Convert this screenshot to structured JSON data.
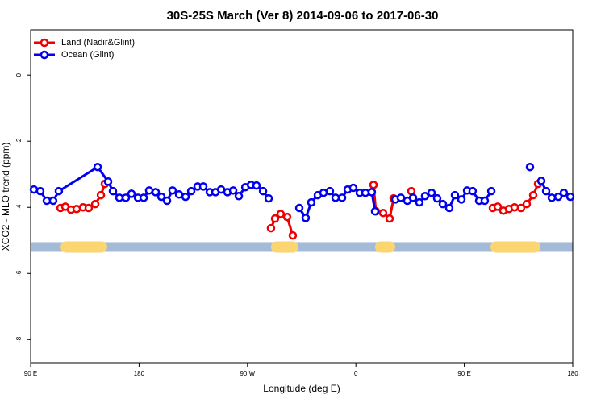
{
  "chart_data": {
    "type": "line",
    "title": "30S-25S March (Ver 8)   2014-09-06 to 2017-06-30",
    "x_label": "Longitude (deg E)",
    "y_label": "XCO2 - MLO trend (ppm)",
    "xlim": [
      90,
      540
    ],
    "ylim": [
      -8.7,
      1.37
    ],
    "xticks": [
      {
        "value": 90,
        "label": "90 E"
      },
      {
        "value": 180,
        "label": "180"
      },
      {
        "value": 270,
        "label": "90 W"
      },
      {
        "value": 360,
        "label": "0"
      },
      {
        "value": 450,
        "label": "90 E"
      },
      {
        "value": 540,
        "label": "180"
      }
    ],
    "yticks": [
      0,
      -2,
      -4,
      -6,
      -8
    ],
    "legend": "top-left",
    "band": {
      "y": -5.2,
      "color": "#a3bbd8",
      "land_color": "#fbd56f",
      "land_spans": [
        [
          114.8,
          153.6
        ],
        [
          289.5,
          312.3
        ],
        [
          375.9,
          392.7
        ],
        [
          471.7,
          513.2
        ]
      ]
    },
    "series": [
      {
        "name": "Land (Nadir&Glint)",
        "color": "#ee0000",
        "x": [
          114.8,
          118.8,
          123.5,
          128.2,
          133.5,
          138.2,
          143.6,
          148.3,
          151.6,
          200,
          289.5,
          292.9,
          297.5,
          302.9,
          307.6,
          340,
          374.6,
          376.6,
          382.6,
          388.0,
          391.3,
          400,
          406.0,
          440,
          473.7,
          477.7,
          482.4,
          487.1,
          491.8,
          497.1,
          501.8,
          507.2,
          511.2
        ],
        "values": [
          -4.02,
          -3.98,
          -4.07,
          -4.05,
          -4.0,
          -4.02,
          -3.9,
          -3.63,
          -3.29,
          null,
          -4.63,
          -4.34,
          -4.2,
          -4.29,
          -4.85,
          null,
          -3.32,
          -4.12,
          -4.17,
          -4.34,
          -3.73,
          null,
          -3.51,
          null,
          -4.02,
          -3.98,
          -4.1,
          -4.05,
          -4.0,
          -4.02,
          -3.9,
          -3.63,
          -3.29
        ]
      },
      {
        "name": "Ocean (Glint)",
        "color": "#0000ee",
        "x": [
          92.7,
          98.0,
          103.4,
          108.7,
          113.4,
          145.6,
          154.3,
          158.3,
          163.7,
          169.0,
          173.7,
          179.1,
          183.8,
          188.4,
          193.8,
          198.5,
          203.2,
          207.8,
          213.2,
          218.6,
          223.3,
          228.6,
          233.3,
          238.7,
          243.4,
          248.1,
          253.4,
          258.1,
          262.8,
          268.2,
          272.9,
          277.5,
          282.9,
          287.6,
          300,
          313.0,
          318.3,
          323.0,
          328.4,
          333.1,
          338.4,
          343.1,
          348.5,
          353.2,
          357.8,
          363.2,
          367.9,
          373.2,
          375.9,
          378,
          392.7,
          397.3,
          402.7,
          407.4,
          412.7,
          417.4,
          422.8,
          427.5,
          432.2,
          437.5,
          442.2,
          447.6,
          452.3,
          456.9,
          462.3,
          467.0,
          472.4,
          480,
          504.5,
          508,
          513.9,
          517.9,
          522.6,
          528.0,
          532.6,
          538.0
        ],
        "values": [
          -3.46,
          -3.51,
          -3.8,
          -3.8,
          -3.51,
          -2.78,
          -3.22,
          -3.51,
          -3.71,
          -3.71,
          -3.59,
          -3.71,
          -3.71,
          -3.49,
          -3.54,
          -3.68,
          -3.8,
          -3.49,
          -3.61,
          -3.68,
          -3.51,
          -3.37,
          -3.37,
          -3.54,
          -3.54,
          -3.46,
          -3.54,
          -3.49,
          -3.66,
          -3.39,
          -3.32,
          -3.34,
          -3.51,
          -3.73,
          null,
          -4.02,
          -4.32,
          -3.85,
          -3.63,
          -3.56,
          -3.51,
          -3.71,
          -3.71,
          -3.46,
          -3.41,
          -3.56,
          -3.56,
          -3.54,
          -4.12,
          null,
          -3.76,
          -3.71,
          -3.8,
          -3.71,
          -3.85,
          -3.66,
          -3.56,
          -3.73,
          -3.9,
          -4.02,
          -3.63,
          -3.76,
          -3.49,
          -3.51,
          -3.8,
          -3.8,
          -3.51,
          null,
          -2.78,
          null,
          -3.2,
          -3.51,
          -3.71,
          -3.68,
          -3.56,
          -3.68
        ]
      }
    ]
  }
}
